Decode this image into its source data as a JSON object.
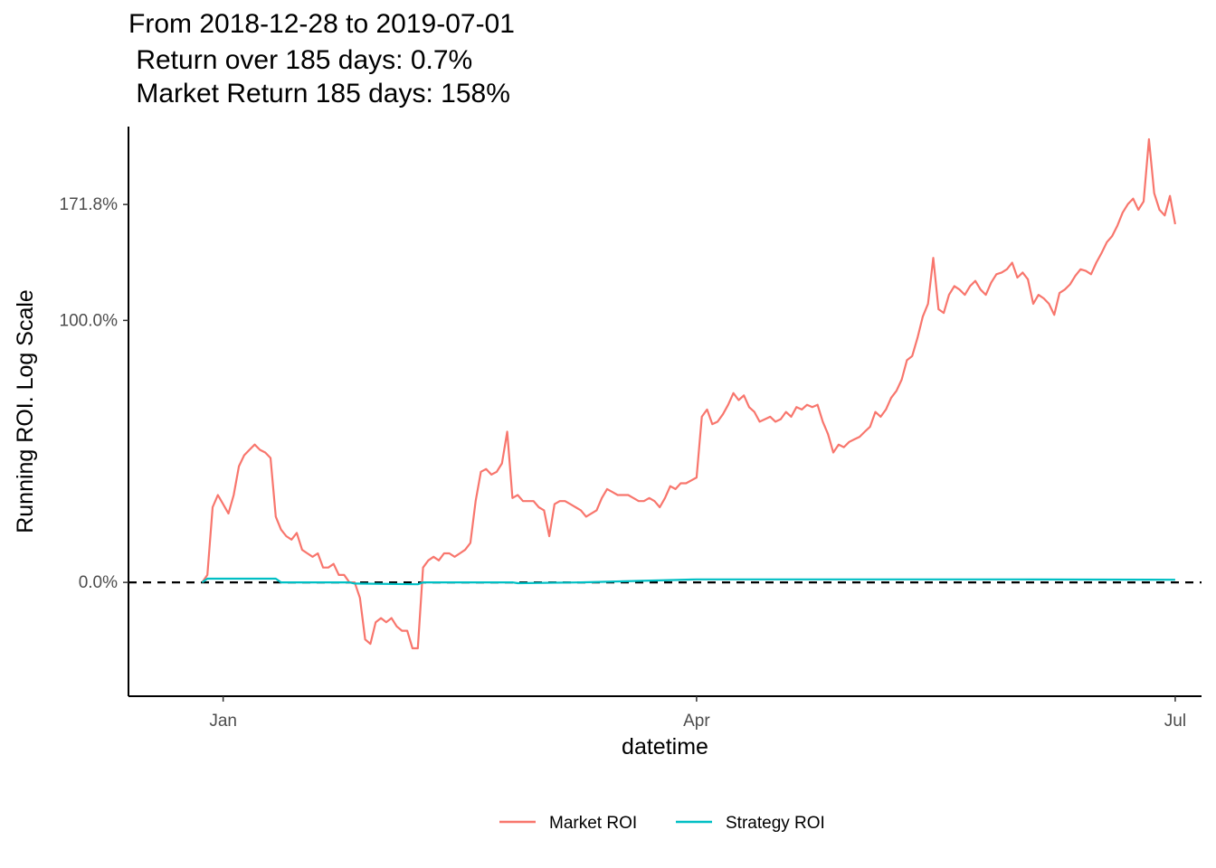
{
  "chart_data": {
    "type": "line",
    "title_lines": [
      "From 2018-12-28 to 2019-07-01",
      " Return over 185 days: 0.7%",
      " Market Return 185 days: 158%"
    ],
    "xlabel": "datetime",
    "ylabel": "Running ROI. Log Scale",
    "y_scale": "log1p",
    "x_ticks": [
      {
        "label": "Jan",
        "date": "2019-01-01"
      },
      {
        "label": "Apr",
        "date": "2019-04-01"
      },
      {
        "label": "Jul",
        "date": "2019-07-01"
      }
    ],
    "y_ticks": [
      {
        "label": "0.0%",
        "value": 0.0
      },
      {
        "label": "100.0%",
        "value": 1.0
      },
      {
        "label": "171.8%",
        "value": 1.718
      }
    ],
    "ylim": [
      -0.26,
      2.34
    ],
    "xlim": [
      "2018-12-14",
      "2019-07-06"
    ],
    "reference_line": {
      "value": 0.0,
      "style": "dashed",
      "color": "#000000"
    },
    "legend": {
      "position": "bottom"
    },
    "grid": false,
    "series": [
      {
        "name": "Market ROI",
        "color": "#F8766D",
        "points": [
          [
            "2018-12-28",
            0.0
          ],
          [
            "2018-12-29",
            0.02
          ],
          [
            "2018-12-30",
            0.22
          ],
          [
            "2018-12-31",
            0.26
          ],
          [
            "2019-01-01",
            0.23
          ],
          [
            "2019-01-02",
            0.2
          ],
          [
            "2019-01-03",
            0.26
          ],
          [
            "2019-01-04",
            0.36
          ],
          [
            "2019-01-05",
            0.4
          ],
          [
            "2019-01-06",
            0.42
          ],
          [
            "2019-01-07",
            0.44
          ],
          [
            "2019-01-08",
            0.42
          ],
          [
            "2019-01-09",
            0.41
          ],
          [
            "2019-01-10",
            0.39
          ],
          [
            "2019-01-11",
            0.19
          ],
          [
            "2019-01-12",
            0.15
          ],
          [
            "2019-01-13",
            0.13
          ],
          [
            "2019-01-14",
            0.12
          ],
          [
            "2019-01-15",
            0.14
          ],
          [
            "2019-01-16",
            0.09
          ],
          [
            "2019-01-17",
            0.08
          ],
          [
            "2019-01-18",
            0.07
          ],
          [
            "2019-01-19",
            0.08
          ],
          [
            "2019-01-20",
            0.04
          ],
          [
            "2019-01-21",
            0.04
          ],
          [
            "2019-01-22",
            0.05
          ],
          [
            "2019-01-23",
            0.02
          ],
          [
            "2019-01-24",
            0.02
          ],
          [
            "2019-01-25",
            0.0
          ],
          [
            "2019-01-26",
            0.0
          ],
          [
            "2019-01-27",
            -0.04
          ],
          [
            "2019-01-28",
            -0.14
          ],
          [
            "2019-01-29",
            -0.15
          ],
          [
            "2019-01-30",
            -0.1
          ],
          [
            "2019-01-31",
            -0.09
          ],
          [
            "2019-02-01",
            -0.1
          ],
          [
            "2019-02-02",
            -0.09
          ],
          [
            "2019-02-03",
            -0.11
          ],
          [
            "2019-02-04",
            -0.12
          ],
          [
            "2019-02-05",
            -0.12
          ],
          [
            "2019-02-06",
            -0.16
          ],
          [
            "2019-02-07",
            -0.16
          ],
          [
            "2019-02-08",
            0.04
          ],
          [
            "2019-02-09",
            0.06
          ],
          [
            "2019-02-10",
            0.07
          ],
          [
            "2019-02-11",
            0.06
          ],
          [
            "2019-02-12",
            0.08
          ],
          [
            "2019-02-13",
            0.08
          ],
          [
            "2019-02-14",
            0.07
          ],
          [
            "2019-02-15",
            0.08
          ],
          [
            "2019-02-16",
            0.09
          ],
          [
            "2019-02-17",
            0.11
          ],
          [
            "2019-02-18",
            0.24
          ],
          [
            "2019-02-19",
            0.34
          ],
          [
            "2019-02-20",
            0.35
          ],
          [
            "2019-02-21",
            0.33
          ],
          [
            "2019-02-22",
            0.34
          ],
          [
            "2019-02-23",
            0.37
          ],
          [
            "2019-02-24",
            0.49
          ],
          [
            "2019-02-25",
            0.25
          ],
          [
            "2019-02-26",
            0.26
          ],
          [
            "2019-02-27",
            0.24
          ],
          [
            "2019-02-28",
            0.24
          ],
          [
            "2019-03-01",
            0.24
          ],
          [
            "2019-03-02",
            0.22
          ],
          [
            "2019-03-03",
            0.21
          ],
          [
            "2019-03-04",
            0.13
          ],
          [
            "2019-03-05",
            0.23
          ],
          [
            "2019-03-06",
            0.24
          ],
          [
            "2019-03-07",
            0.24
          ],
          [
            "2019-03-08",
            0.23
          ],
          [
            "2019-03-09",
            0.22
          ],
          [
            "2019-03-10",
            0.21
          ],
          [
            "2019-03-11",
            0.19
          ],
          [
            "2019-03-12",
            0.2
          ],
          [
            "2019-03-13",
            0.21
          ],
          [
            "2019-03-14",
            0.25
          ],
          [
            "2019-03-15",
            0.28
          ],
          [
            "2019-03-16",
            0.27
          ],
          [
            "2019-03-17",
            0.26
          ],
          [
            "2019-03-18",
            0.26
          ],
          [
            "2019-03-19",
            0.26
          ],
          [
            "2019-03-20",
            0.25
          ],
          [
            "2019-03-21",
            0.24
          ],
          [
            "2019-03-22",
            0.24
          ],
          [
            "2019-03-23",
            0.25
          ],
          [
            "2019-03-24",
            0.24
          ],
          [
            "2019-03-25",
            0.22
          ],
          [
            "2019-03-26",
            0.25
          ],
          [
            "2019-03-27",
            0.29
          ],
          [
            "2019-03-28",
            0.28
          ],
          [
            "2019-03-29",
            0.3
          ],
          [
            "2019-03-30",
            0.3
          ],
          [
            "2019-03-31",
            0.31
          ],
          [
            "2019-04-01",
            0.32
          ],
          [
            "2019-04-02",
            0.55
          ],
          [
            "2019-04-03",
            0.58
          ],
          [
            "2019-04-04",
            0.52
          ],
          [
            "2019-04-05",
            0.53
          ],
          [
            "2019-04-06",
            0.56
          ],
          [
            "2019-04-07",
            0.6
          ],
          [
            "2019-04-08",
            0.65
          ],
          [
            "2019-04-09",
            0.62
          ],
          [
            "2019-04-10",
            0.64
          ],
          [
            "2019-04-11",
            0.59
          ],
          [
            "2019-04-12",
            0.57
          ],
          [
            "2019-04-13",
            0.53
          ],
          [
            "2019-04-14",
            0.54
          ],
          [
            "2019-04-15",
            0.55
          ],
          [
            "2019-04-16",
            0.53
          ],
          [
            "2019-04-17",
            0.54
          ],
          [
            "2019-04-18",
            0.57
          ],
          [
            "2019-04-19",
            0.55
          ],
          [
            "2019-04-20",
            0.59
          ],
          [
            "2019-04-21",
            0.58
          ],
          [
            "2019-04-22",
            0.6
          ],
          [
            "2019-04-23",
            0.59
          ],
          [
            "2019-04-24",
            0.6
          ],
          [
            "2019-04-25",
            0.53
          ],
          [
            "2019-04-26",
            0.48
          ],
          [
            "2019-04-27",
            0.41
          ],
          [
            "2019-04-28",
            0.44
          ],
          [
            "2019-04-29",
            0.43
          ],
          [
            "2019-04-30",
            0.45
          ],
          [
            "2019-05-01",
            0.46
          ],
          [
            "2019-05-02",
            0.47
          ],
          [
            "2019-05-03",
            0.49
          ],
          [
            "2019-05-04",
            0.51
          ],
          [
            "2019-05-05",
            0.57
          ],
          [
            "2019-05-06",
            0.55
          ],
          [
            "2019-05-07",
            0.58
          ],
          [
            "2019-05-08",
            0.63
          ],
          [
            "2019-05-09",
            0.66
          ],
          [
            "2019-05-10",
            0.71
          ],
          [
            "2019-05-11",
            0.8
          ],
          [
            "2019-05-12",
            0.82
          ],
          [
            "2019-05-13",
            0.91
          ],
          [
            "2019-05-14",
            1.02
          ],
          [
            "2019-05-15",
            1.09
          ],
          [
            "2019-05-16",
            1.36
          ],
          [
            "2019-05-17",
            1.06
          ],
          [
            "2019-05-18",
            1.04
          ],
          [
            "2019-05-19",
            1.14
          ],
          [
            "2019-05-20",
            1.19
          ],
          [
            "2019-05-21",
            1.17
          ],
          [
            "2019-05-22",
            1.14
          ],
          [
            "2019-05-23",
            1.19
          ],
          [
            "2019-05-24",
            1.22
          ],
          [
            "2019-05-25",
            1.17
          ],
          [
            "2019-05-26",
            1.14
          ],
          [
            "2019-05-27",
            1.21
          ],
          [
            "2019-05-28",
            1.26
          ],
          [
            "2019-05-29",
            1.27
          ],
          [
            "2019-05-30",
            1.29
          ],
          [
            "2019-05-31",
            1.33
          ],
          [
            "2019-06-01",
            1.24
          ],
          [
            "2019-06-02",
            1.27
          ],
          [
            "2019-06-03",
            1.23
          ],
          [
            "2019-06-04",
            1.09
          ],
          [
            "2019-06-05",
            1.14
          ],
          [
            "2019-06-06",
            1.12
          ],
          [
            "2019-06-07",
            1.09
          ],
          [
            "2019-06-08",
            1.03
          ],
          [
            "2019-06-09",
            1.15
          ],
          [
            "2019-06-10",
            1.17
          ],
          [
            "2019-06-11",
            1.2
          ],
          [
            "2019-06-12",
            1.25
          ],
          [
            "2019-06-13",
            1.29
          ],
          [
            "2019-06-14",
            1.28
          ],
          [
            "2019-06-15",
            1.26
          ],
          [
            "2019-06-16",
            1.33
          ],
          [
            "2019-06-17",
            1.39
          ],
          [
            "2019-06-18",
            1.46
          ],
          [
            "2019-06-19",
            1.5
          ],
          [
            "2019-06-20",
            1.57
          ],
          [
            "2019-06-21",
            1.66
          ],
          [
            "2019-06-22",
            1.72
          ],
          [
            "2019-06-23",
            1.76
          ],
          [
            "2019-06-24",
            1.68
          ],
          [
            "2019-06-25",
            1.74
          ],
          [
            "2019-06-26",
            2.23
          ],
          [
            "2019-06-27",
            1.8
          ],
          [
            "2019-06-28",
            1.68
          ],
          [
            "2019-06-29",
            1.64
          ],
          [
            "2019-06-30",
            1.78
          ],
          [
            "2019-07-01",
            1.58
          ]
        ]
      },
      {
        "name": "Strategy ROI",
        "color": "#00BFC4",
        "points": [
          [
            "2018-12-28",
            0.0
          ],
          [
            "2018-12-29",
            0.01
          ],
          [
            "2019-01-11",
            0.01
          ],
          [
            "2019-01-12",
            0.0
          ],
          [
            "2019-01-25",
            0.0
          ],
          [
            "2019-01-26",
            -0.003
          ],
          [
            "2019-02-07",
            -0.005
          ],
          [
            "2019-02-08",
            0.0
          ],
          [
            "2019-02-25",
            0.0
          ],
          [
            "2019-02-26",
            -0.002
          ],
          [
            "2019-03-10",
            0.0
          ],
          [
            "2019-04-01",
            0.008
          ],
          [
            "2019-05-01",
            0.008
          ],
          [
            "2019-06-01",
            0.008
          ],
          [
            "2019-07-01",
            0.007
          ]
        ]
      }
    ]
  }
}
